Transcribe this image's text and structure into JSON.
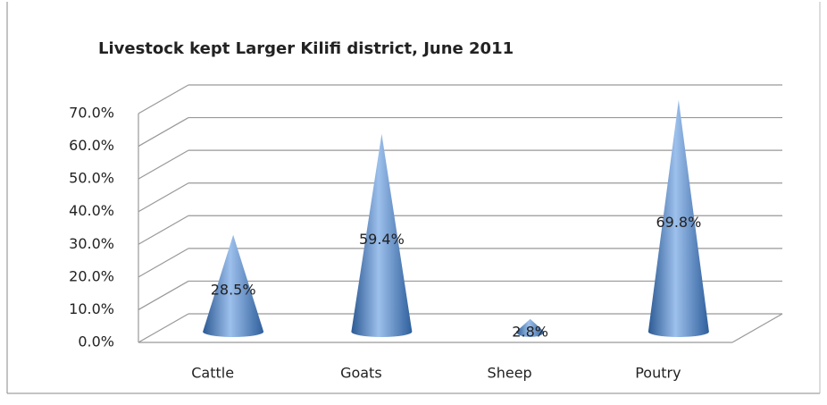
{
  "chart_data": {
    "type": "cone",
    "title": "Livestock kept Larger Kilifi district, June 2011",
    "categories": [
      "Cattle",
      "Goats",
      "Sheep",
      "Poutry"
    ],
    "values": [
      28.5,
      59.4,
      2.8,
      69.8
    ],
    "value_labels": [
      "28.5%",
      "59.4%",
      "2.8%",
      "69.8%"
    ],
    "color": "#4f81bd",
    "ylim": [
      0,
      70
    ],
    "yticks": [
      {
        "value": 0,
        "label": "0.0%"
      },
      {
        "value": 10,
        "label": "10.0%"
      },
      {
        "value": 20,
        "label": "20.0%"
      },
      {
        "value": 30,
        "label": "30.0%"
      },
      {
        "value": 40,
        "label": "40.0%"
      },
      {
        "value": 50,
        "label": "50.0%"
      },
      {
        "value": 60,
        "label": "60.0%"
      },
      {
        "value": 70,
        "label": "70.0%"
      }
    ],
    "grid": true
  }
}
